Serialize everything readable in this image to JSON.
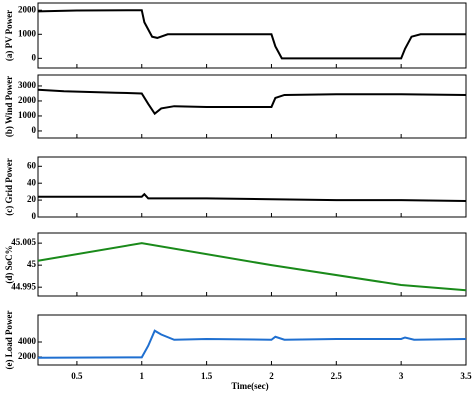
{
  "chart_data": [
    {
      "type": "line",
      "ylabel": "(a) PV Power",
      "xlim": [
        0.2,
        3.5
      ],
      "ylim": [
        -400,
        2300
      ],
      "yticks": [
        0,
        1000,
        2000
      ],
      "series": [
        {
          "color": "#000000",
          "x": [
            0.2,
            0.5,
            0.9,
            1.0,
            1.02,
            1.08,
            1.12,
            1.2,
            1.5,
            2.0,
            2.03,
            2.08,
            2.5,
            3.0,
            3.03,
            3.08,
            3.15,
            3.5
          ],
          "values": [
            1950,
            1990,
            2000,
            2000,
            1500,
            900,
            850,
            1000,
            1000,
            1000,
            500,
            0,
            0,
            0,
            400,
            900,
            1000,
            1000
          ]
        }
      ]
    },
    {
      "type": "line",
      "ylabel": "(b) Wind Power",
      "xlim": [
        0.2,
        3.5
      ],
      "ylim": [
        -470,
        3730
      ],
      "yticks": [
        0,
        1000,
        2000,
        3000
      ],
      "series": [
        {
          "color": "#000000",
          "x": [
            0.2,
            0.4,
            0.8,
            1.0,
            1.05,
            1.1,
            1.15,
            1.25,
            1.5,
            2.0,
            2.03,
            2.1,
            2.5,
            3.0,
            3.5
          ],
          "values": [
            2750,
            2650,
            2550,
            2500,
            1800,
            1150,
            1500,
            1650,
            1600,
            1600,
            2200,
            2400,
            2450,
            2450,
            2400
          ]
        }
      ]
    },
    {
      "type": "line",
      "ylabel": "(c) Grid Power",
      "xlim": [
        0.2,
        3.5
      ],
      "ylim": [
        0,
        71
      ],
      "yticks": [
        0,
        20,
        40,
        60
      ],
      "series": [
        {
          "color": "#000000",
          "x": [
            0.2,
            0.5,
            1.0,
            1.02,
            1.05,
            1.5,
            2.0,
            2.5,
            3.0,
            3.5
          ],
          "values": [
            24,
            24,
            24,
            27,
            22,
            22,
            21,
            20,
            20,
            19
          ]
        }
      ]
    },
    {
      "type": "line",
      "ylabel": "(d) SoC%",
      "xlim": [
        0.2,
        3.5
      ],
      "ylim": [
        44.993,
        45.0073
      ],
      "yticks": [
        44.995,
        45,
        45.005
      ],
      "series": [
        {
          "color": "#1a8a1a",
          "x": [
            0.2,
            1.0,
            2.0,
            3.0,
            3.5
          ],
          "values": [
            45.001,
            45.005,
            45.0,
            44.9955,
            44.9943
          ]
        }
      ]
    },
    {
      "type": "line",
      "ylabel": "(e) Load Power",
      "xlabel": "Time(sec)",
      "xlim": [
        0.2,
        3.5
      ],
      "xticks": [
        0.5,
        1,
        1.5,
        2,
        2.5,
        3,
        3.5
      ],
      "ylim": [
        930,
        7600
      ],
      "yticks": [
        2000,
        4000
      ],
      "series": [
        {
          "color": "#1f6fd0",
          "x": [
            0.2,
            1.0,
            1.05,
            1.1,
            1.15,
            1.25,
            1.5,
            2.0,
            2.03,
            2.1,
            2.5,
            3.0,
            3.03,
            3.1,
            3.5
          ],
          "values": [
            1900,
            1950,
            3500,
            5500,
            5000,
            4300,
            4400,
            4300,
            4700,
            4300,
            4400,
            4400,
            4600,
            4300,
            4400
          ]
        }
      ]
    }
  ]
}
